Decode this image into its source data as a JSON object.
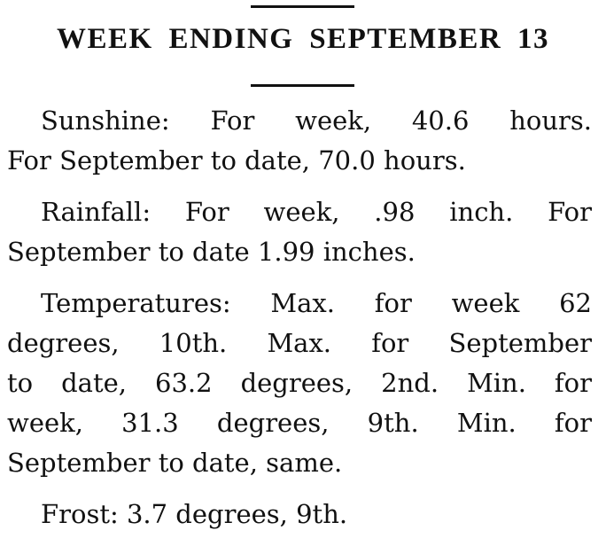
{
  "header": {
    "title": "WEEK ENDING SEPTEMBER 13"
  },
  "paragraphs": [
    {
      "lines": [
        "Sunshine: For week, 40.6 hours.",
        "For September to date, 70.0 hours."
      ]
    },
    {
      "lines": [
        "Rainfall: For week, .98 inch. For",
        "September to date 1.99 inches."
      ]
    },
    {
      "lines": [
        "Temperatures: Max. for week 62",
        "degrees, 10th.  Max. for September",
        "to date, 63.2 degrees, 2nd.  Min. for",
        "week, 31.3 degrees, 9th.  Min. for",
        "September to date, same."
      ]
    },
    {
      "lines": [
        "Frost: 3.7 degrees, 9th."
      ]
    }
  ]
}
